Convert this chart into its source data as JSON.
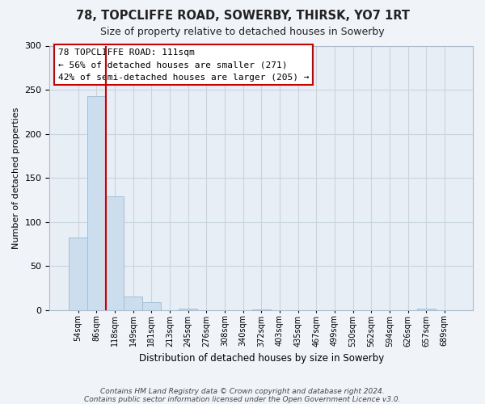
{
  "title": "78, TOPCLIFFE ROAD, SOWERBY, THIRSK, YO7 1RT",
  "subtitle": "Size of property relative to detached houses in Sowerby",
  "xlabel": "Distribution of detached houses by size in Sowerby",
  "ylabel": "Number of detached properties",
  "bin_labels": [
    "54sqm",
    "86sqm",
    "118sqm",
    "149sqm",
    "181sqm",
    "213sqm",
    "245sqm",
    "276sqm",
    "308sqm",
    "340sqm",
    "372sqm",
    "403sqm",
    "435sqm",
    "467sqm",
    "499sqm",
    "530sqm",
    "562sqm",
    "594sqm",
    "626sqm",
    "657sqm",
    "689sqm"
  ],
  "bar_heights": [
    82,
    243,
    129,
    15,
    9,
    0,
    2,
    0,
    0,
    0,
    1,
    0,
    0,
    0,
    0,
    0,
    0,
    0,
    0,
    2,
    0
  ],
  "bar_color": "#ccdded",
  "bar_edge_color": "#a0c0d8",
  "highlight_line_color": "#cc0000",
  "annotation_line1": "78 TOPCLIFFE ROAD: 111sqm",
  "annotation_line2": "← 56% of detached houses are smaller (271)",
  "annotation_line3": "42% of semi-detached houses are larger (205) →",
  "ylim": [
    0,
    300
  ],
  "yticks": [
    0,
    50,
    100,
    150,
    200,
    250,
    300
  ],
  "footnote_line1": "Contains HM Land Registry data © Crown copyright and database right 2024.",
  "footnote_line2": "Contains public sector information licensed under the Open Government Licence v3.0.",
  "bg_color": "#f0f4f8",
  "plot_bg_color": "#e8eef5",
  "grid_color": "#c8d4de"
}
